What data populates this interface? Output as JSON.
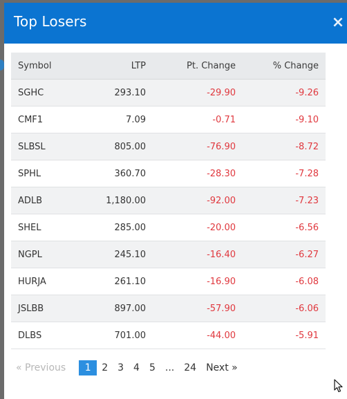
{
  "modal": {
    "title": "Top Losers",
    "close_glyph": "×"
  },
  "table": {
    "columns": [
      "Symbol",
      "LTP",
      "Pt. Change",
      "% Change"
    ],
    "rows": [
      {
        "symbol": "SGHC",
        "ltp": "293.10",
        "pt_change": "-29.90",
        "pct_change": "-9.26"
      },
      {
        "symbol": "CMF1",
        "ltp": "7.09",
        "pt_change": "-0.71",
        "pct_change": "-9.10"
      },
      {
        "symbol": "SLBSL",
        "ltp": "805.00",
        "pt_change": "-76.90",
        "pct_change": "-8.72"
      },
      {
        "symbol": "SPHL",
        "ltp": "360.70",
        "pt_change": "-28.30",
        "pct_change": "-7.28"
      },
      {
        "symbol": "ADLB",
        "ltp": "1,180.00",
        "pt_change": "-92.00",
        "pct_change": "-7.23"
      },
      {
        "symbol": "SHEL",
        "ltp": "285.00",
        "pt_change": "-20.00",
        "pct_change": "-6.56"
      },
      {
        "symbol": "NGPL",
        "ltp": "245.10",
        "pt_change": "-16.40",
        "pct_change": "-6.27"
      },
      {
        "symbol": "HURJA",
        "ltp": "261.10",
        "pt_change": "-16.90",
        "pct_change": "-6.08"
      },
      {
        "symbol": "JSLBB",
        "ltp": "897.00",
        "pt_change": "-57.90",
        "pct_change": "-6.06"
      },
      {
        "symbol": "DLBS",
        "ltp": "701.00",
        "pt_change": "-44.00",
        "pct_change": "-5.91"
      }
    ]
  },
  "pagination": {
    "previous": "« Previous",
    "pages": [
      "1",
      "2",
      "3",
      "4",
      "5"
    ],
    "ellipsis": "...",
    "last": "24",
    "next": "Next »",
    "current": "1"
  },
  "colors": {
    "header_blue": "#0b74d1",
    "negative_red": "#e0383e",
    "active_page": "#2c8fe0"
  }
}
